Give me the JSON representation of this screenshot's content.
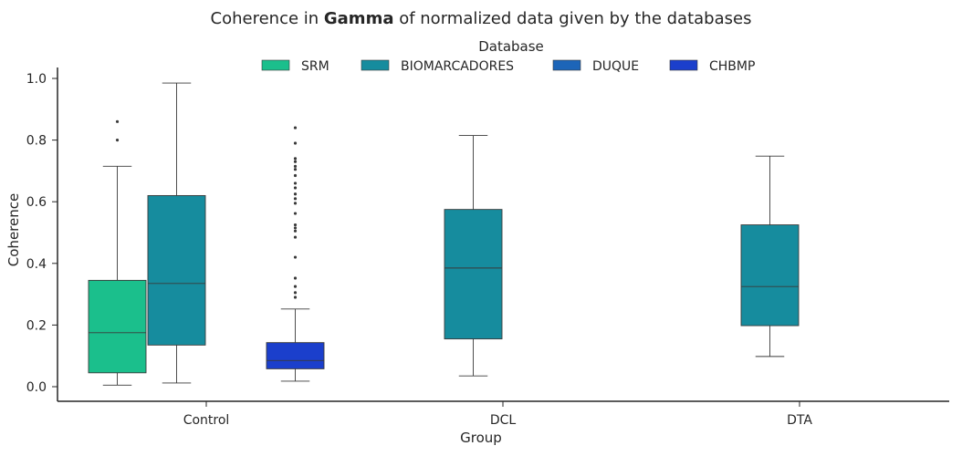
{
  "chart_data": {
    "type": "boxplot",
    "title_prefix": "Coherence in ",
    "title_bold": "Gamma",
    "title_suffix": " of normalized data given by the databases",
    "xlabel": "Group",
    "ylabel": "Coherence",
    "legend_title": "Database",
    "legend_position": "top-center",
    "ylim": [
      -0.045,
      1.03
    ],
    "yticks": [
      0.0,
      0.2,
      0.4,
      0.6,
      0.8,
      1.0
    ],
    "ytick_labels": [
      "0.0",
      "0.2",
      "0.4",
      "0.6",
      "0.8",
      "1.0"
    ],
    "categories": [
      "Control",
      "DCL",
      "DTA"
    ],
    "grid": false,
    "series": [
      {
        "name": "SRM",
        "color": "#1bbf8c",
        "boxes": [
          {
            "category": "Control",
            "whisker_low": 0.005,
            "q1": 0.045,
            "median": 0.175,
            "q3": 0.345,
            "whisker_high": 0.715,
            "outliers": [
              0.8,
              0.86
            ]
          }
        ]
      },
      {
        "name": "BIOMARCADORES",
        "color": "#168c9e",
        "boxes": [
          {
            "category": "Control",
            "whisker_low": 0.012,
            "q1": 0.135,
            "median": 0.335,
            "q3": 0.62,
            "whisker_high": 0.985,
            "outliers": []
          },
          {
            "category": "DCL",
            "whisker_low": 0.035,
            "q1": 0.155,
            "median": 0.385,
            "q3": 0.575,
            "whisker_high": 0.815,
            "outliers": []
          },
          {
            "category": "DTA",
            "whisker_low": 0.098,
            "q1": 0.198,
            "median": 0.325,
            "q3": 0.525,
            "whisker_high": 0.748,
            "outliers": []
          }
        ]
      },
      {
        "name": "DUQUE",
        "color": "#1d65b8",
        "boxes": []
      },
      {
        "name": "CHBMP",
        "color": "#1b3fcc",
        "boxes": [
          {
            "category": "Control",
            "whisker_low": 0.018,
            "q1": 0.058,
            "median": 0.085,
            "q3": 0.143,
            "whisker_high": 0.252,
            "outliers": [
              0.29,
              0.305,
              0.325,
              0.352,
              0.42,
              0.485,
              0.505,
              0.515,
              0.525,
              0.562,
              0.595,
              0.61,
              0.625,
              0.645,
              0.66,
              0.685,
              0.705,
              0.715,
              0.73,
              0.74,
              0.79,
              0.84
            ]
          }
        ]
      }
    ]
  }
}
